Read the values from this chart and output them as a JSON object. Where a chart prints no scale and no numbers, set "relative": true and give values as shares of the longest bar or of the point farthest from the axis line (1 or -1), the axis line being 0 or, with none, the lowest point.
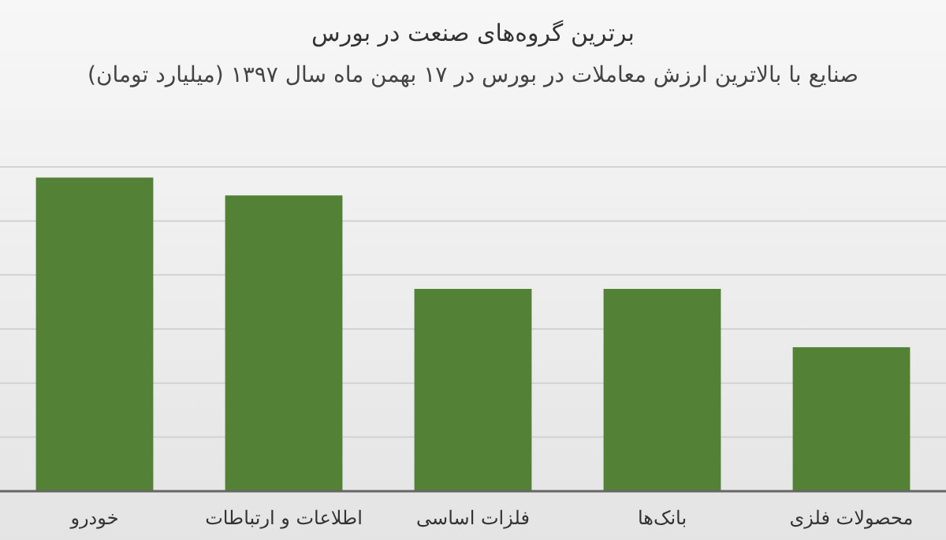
{
  "chart_data": {
    "type": "bar",
    "title": "برترین گروه‌های صنعت در بورس",
    "subtitle": "صنایع با بالاترین ارزش معاملات در بورس در ۱۷ بهمن ماه سال ۱۳۹۷ (میلیارد تومان)",
    "categories": [
      "خودرو",
      "اطلاعات و ارتباطات",
      "فلزات اساسی",
      "بانک‌ها",
      "محصولات فلزی"
    ],
    "values": [
      1,
      0.943,
      0.645,
      0.645,
      0.459
    ],
    "color": "#538135",
    "relative": true,
    "grid": "y"
  }
}
